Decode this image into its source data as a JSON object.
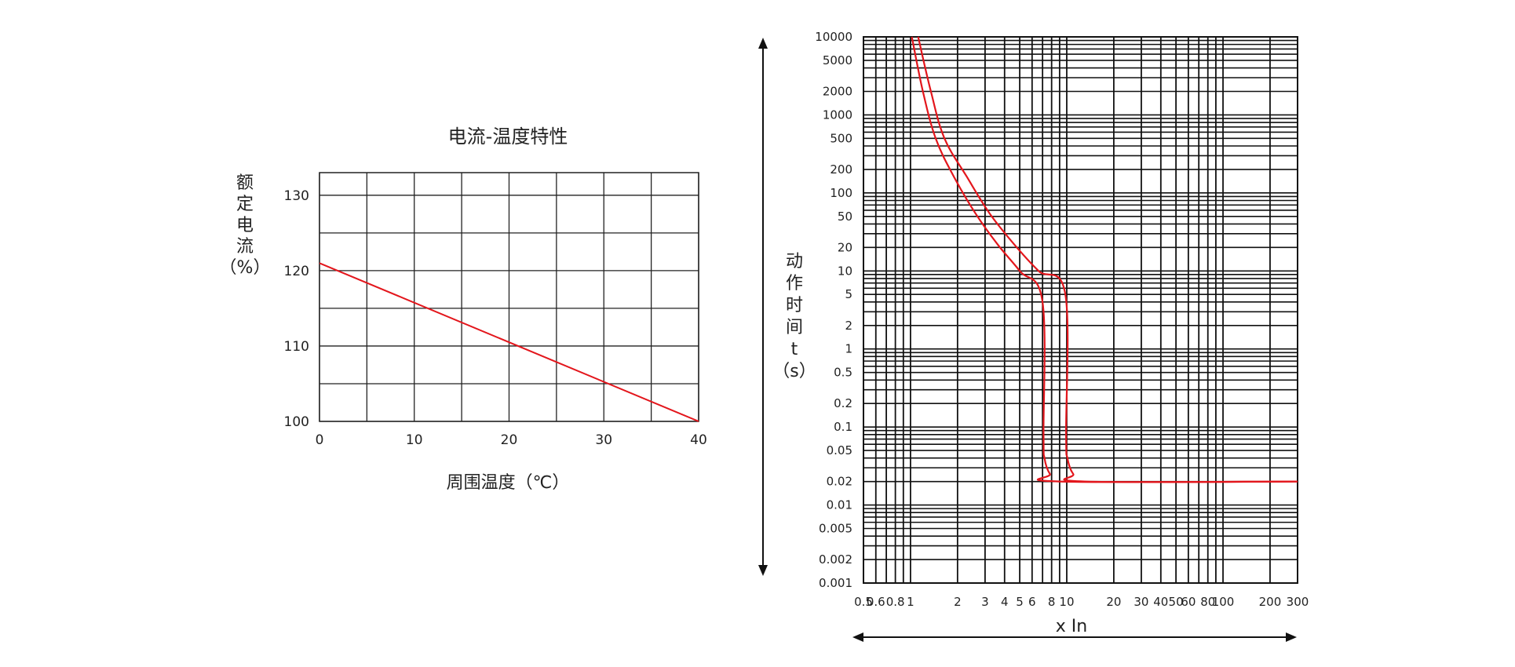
{
  "chart_data": [
    {
      "type": "line",
      "title": "电流-温度特性",
      "xlabel": "周围温度（℃）",
      "ylabel_chars": [
        "额",
        "定",
        "电",
        "流",
        "（%）"
      ],
      "xlim": [
        0,
        40
      ],
      "ylim": [
        100,
        133
      ],
      "x_ticks": [
        {
          "value": 0,
          "label": "0"
        },
        {
          "value": 10,
          "label": "10"
        },
        {
          "value": 20,
          "label": "20"
        },
        {
          "value": 30,
          "label": "30"
        },
        {
          "value": 40,
          "label": "40"
        }
      ],
      "y_ticks": [
        {
          "value": 100,
          "label": "100"
        },
        {
          "value": 110,
          "label": "110"
        },
        {
          "value": 120,
          "label": "120"
        },
        {
          "value": 130,
          "label": "130"
        }
      ],
      "grid": true,
      "grid_x": [
        0,
        5,
        10,
        15,
        20,
        25,
        30,
        35,
        40
      ],
      "grid_y": [
        100,
        105,
        110,
        115,
        120,
        125,
        130
      ],
      "series": [
        {
          "points": [
            [
              0,
              121
            ],
            [
              40,
              100
            ]
          ],
          "color": "#e3161c"
        }
      ]
    },
    {
      "type": "line",
      "xscale": "log",
      "yscale": "log",
      "xlabel": "x In",
      "ylabel_chars": [
        "动",
        "作",
        "时",
        "间",
        "t",
        "（s）"
      ],
      "xlim": [
        0.5,
        300
      ],
      "ylim": [
        0.001,
        10000
      ],
      "x_ticks": [
        {
          "value": 0.5,
          "label": "0.5"
        },
        {
          "value": 0.6,
          "label": "0.6"
        },
        {
          "value": 0.8,
          "label": "0.8"
        },
        {
          "value": 1,
          "label": "1"
        },
        {
          "value": 2,
          "label": "2"
        },
        {
          "value": 3,
          "label": "3"
        },
        {
          "value": 4,
          "label": "4"
        },
        {
          "value": 5,
          "label": "5"
        },
        {
          "value": 6,
          "label": "6"
        },
        {
          "value": 8,
          "label": "8"
        },
        {
          "value": 10,
          "label": "10"
        },
        {
          "value": 20,
          "label": "20"
        },
        {
          "value": 30,
          "label": "30"
        },
        {
          "value": 40,
          "label": "40"
        },
        {
          "value": 50,
          "label": "50"
        },
        {
          "value": 60,
          "label": "60"
        },
        {
          "value": 80,
          "label": "80"
        },
        {
          "value": 100,
          "label": "100"
        },
        {
          "value": 200,
          "label": "200"
        },
        {
          "value": 300,
          "label": "300"
        }
      ],
      "y_ticks": [
        {
          "value": 10000,
          "label": "10000"
        },
        {
          "value": 5000,
          "label": "5000"
        },
        {
          "value": 2000,
          "label": "2000"
        },
        {
          "value": 1000,
          "label": "1000"
        },
        {
          "value": 500,
          "label": "500"
        },
        {
          "value": 200,
          "label": "200"
        },
        {
          "value": 100,
          "label": "100"
        },
        {
          "value": 50,
          "label": "50"
        },
        {
          "value": 20,
          "label": "20"
        },
        {
          "value": 10,
          "label": "10"
        },
        {
          "value": 5,
          "label": "5"
        },
        {
          "value": 2,
          "label": "2"
        },
        {
          "value": 1,
          "label": "1"
        },
        {
          "value": 0.5,
          "label": "0.5"
        },
        {
          "value": 0.2,
          "label": "0.2"
        },
        {
          "value": 0.1,
          "label": "0.1"
        },
        {
          "value": 0.05,
          "label": "0.05"
        },
        {
          "value": 0.02,
          "label": "0.02"
        },
        {
          "value": 0.01,
          "label": "0.01"
        },
        {
          "value": 0.005,
          "label": "0.005"
        },
        {
          "value": 0.002,
          "label": "0.002"
        },
        {
          "value": 0.001,
          "label": "0.001"
        }
      ],
      "grid": true,
      "grid_x": [
        0.5,
        0.6,
        0.7,
        0.8,
        0.9,
        1,
        2,
        3,
        4,
        5,
        6,
        7,
        8,
        9,
        10,
        20,
        30,
        40,
        50,
        60,
        70,
        80,
        90,
        100,
        200,
        300
      ],
      "grid_y": [
        0.001,
        0.002,
        0.003,
        0.004,
        0.005,
        0.006,
        0.007,
        0.008,
        0.009,
        0.01,
        0.02,
        0.03,
        0.04,
        0.05,
        0.06,
        0.07,
        0.08,
        0.09,
        0.1,
        0.2,
        0.3,
        0.4,
        0.5,
        0.6,
        0.7,
        0.8,
        0.9,
        1,
        2,
        3,
        4,
        5,
        6,
        7,
        8,
        9,
        10,
        20,
        30,
        40,
        50,
        60,
        70,
        80,
        90,
        100,
        200,
        300,
        400,
        500,
        600,
        700,
        800,
        900,
        1000,
        2000,
        3000,
        4000,
        5000,
        6000,
        7000,
        8000,
        9000,
        10000
      ],
      "series": [
        {
          "color": "#e3161c",
          "points": [
            [
              1.02,
              10000
            ],
            [
              1.2,
              2000
            ],
            [
              1.45,
              500
            ],
            [
              1.9,
              160
            ],
            [
              2.6,
              55
            ],
            [
              3.6,
              22
            ],
            [
              5.0,
              10
            ],
            [
              7.0,
              4
            ],
            [
              7.1,
              0.08
            ],
            [
              7.2,
              0.04
            ],
            [
              7.8,
              0.025
            ],
            [
              9.0,
              0.02
            ],
            [
              300,
              0.02
            ]
          ]
        },
        {
          "color": "#e3161c",
          "points": [
            [
              1.12,
              10000
            ],
            [
              1.35,
              2000
            ],
            [
              1.65,
              500
            ],
            [
              2.3,
              160
            ],
            [
              3.2,
              55
            ],
            [
              4.6,
              22
            ],
            [
              6.6,
              10
            ],
            [
              9.8,
              5
            ],
            [
              9.9,
              0.08
            ],
            [
              10.1,
              0.04
            ],
            [
              11.0,
              0.025
            ],
            [
              13.0,
              0.02
            ],
            [
              300,
              0.02
            ]
          ]
        }
      ]
    }
  ]
}
